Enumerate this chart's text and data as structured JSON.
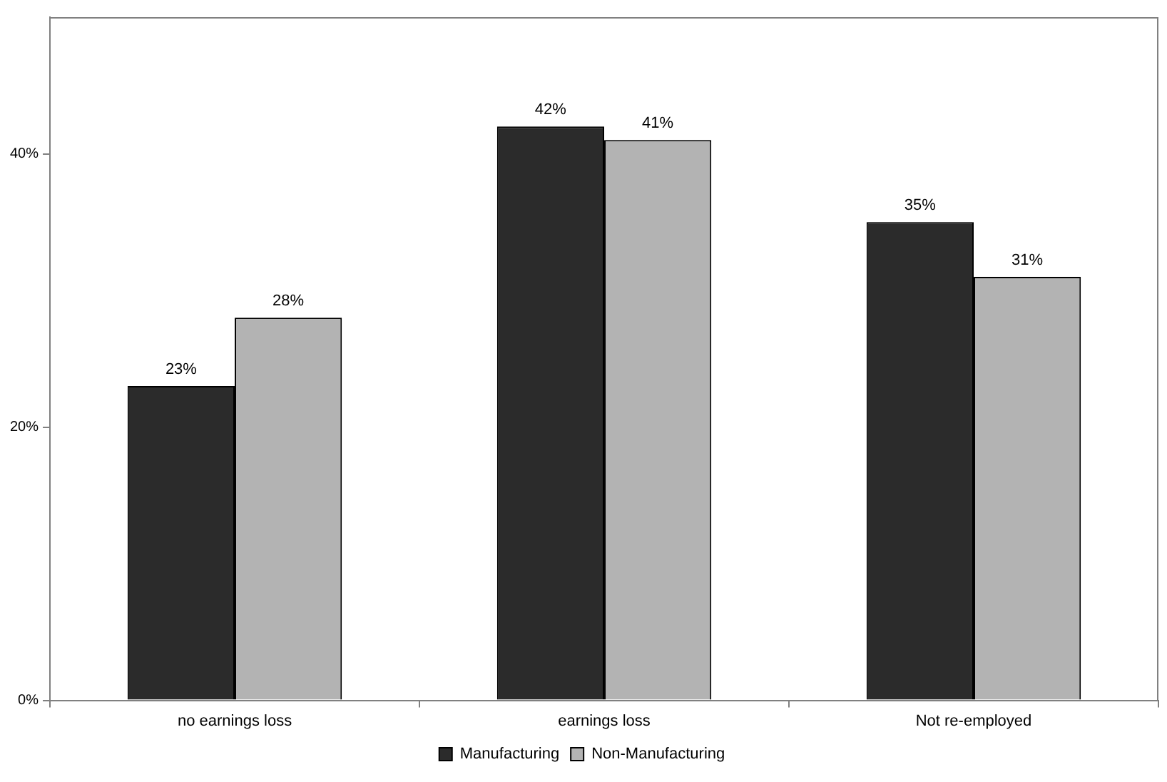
{
  "chart_data": {
    "type": "bar",
    "categories": [
      "no earnings loss",
      "earnings loss",
      "Not re-employed"
    ],
    "series": [
      {
        "name": "Manufacturing",
        "color": "#2b2b2b",
        "values": [
          23,
          42,
          35
        ],
        "value_labels": [
          "23%",
          "42%",
          "35%"
        ]
      },
      {
        "name": "Non-Manufacturing",
        "color": "#b3b3b3",
        "values": [
          28,
          41,
          31
        ],
        "value_labels": [
          "28%",
          "41%",
          "31%"
        ]
      }
    ],
    "ylim": [
      0,
      50
    ],
    "yticks": [
      {
        "value": 0,
        "label": "0%"
      },
      {
        "value": 20,
        "label": "20%"
      },
      {
        "value": 40,
        "label": "40%"
      }
    ],
    "grid": false,
    "legend": "bottom"
  }
}
